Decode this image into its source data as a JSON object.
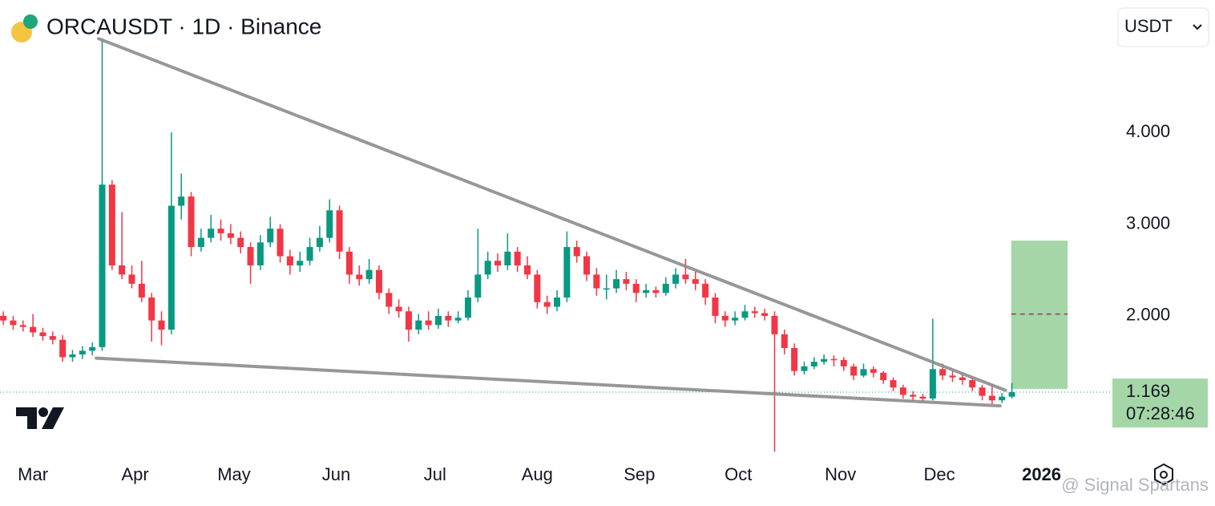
{
  "chart_data": {
    "type": "candlestick",
    "title": "ORCAUSDT · 1D · Binance",
    "currency": "USDT",
    "watermark": "@ Signal Spartans",
    "up_color": "#089981",
    "down_color": "#f23645",
    "ylim": [
      0.462,
      5.441
    ],
    "yticks": [
      {
        "value": 2,
        "label": "2.000"
      },
      {
        "value": 3,
        "label": "3.000"
      },
      {
        "value": 4,
        "label": "4.000"
      }
    ],
    "xlim": [
      0,
      337.5
    ],
    "xticks": [
      {
        "value": 10,
        "label": "Mar"
      },
      {
        "value": 41,
        "label": "Apr"
      },
      {
        "value": 71,
        "label": "May"
      },
      {
        "value": 102,
        "label": "Jun"
      },
      {
        "value": 132,
        "label": "Jul"
      },
      {
        "value": 163,
        "label": "Aug"
      },
      {
        "value": 194,
        "label": "Sep"
      },
      {
        "value": 224,
        "label": "Oct"
      },
      {
        "value": 255,
        "label": "Nov"
      },
      {
        "value": 285,
        "label": "Dec"
      },
      {
        "value": 316,
        "label": "2026"
      }
    ],
    "grid": false,
    "x": [
      1,
      4,
      7,
      10,
      13,
      16,
      19,
      22,
      25,
      28,
      31,
      34,
      37,
      40,
      43,
      46,
      49,
      52,
      55,
      58,
      61,
      64,
      67,
      70,
      73,
      76,
      79,
      82,
      85,
      88,
      91,
      94,
      97,
      100,
      103,
      106,
      109,
      112,
      115,
      118,
      121,
      124,
      127,
      130,
      133,
      136,
      139,
      142,
      145,
      148,
      151,
      154,
      157,
      160,
      163,
      166,
      169,
      172,
      175,
      178,
      181,
      184,
      187,
      190,
      193,
      196,
      199,
      202,
      205,
      208,
      211,
      214,
      217,
      220,
      223,
      226,
      229,
      232,
      235,
      238,
      241,
      244,
      247,
      250,
      253,
      256,
      259,
      262,
      265,
      268,
      271,
      274,
      277,
      280,
      283,
      286,
      289,
      292,
      295,
      298,
      301,
      304,
      307
    ],
    "candles": [
      [
        2.0,
        2.05,
        1.9,
        1.95
      ],
      [
        1.95,
        2.0,
        1.85,
        1.9
      ],
      [
        1.9,
        1.95,
        1.83,
        1.88
      ],
      [
        1.88,
        2.02,
        1.77,
        1.82
      ],
      [
        1.82,
        1.87,
        1.73,
        1.78
      ],
      [
        1.78,
        1.83,
        1.69,
        1.74
      ],
      [
        1.74,
        1.79,
        1.5,
        1.55
      ],
      [
        1.55,
        1.63,
        1.5,
        1.58
      ],
      [
        1.58,
        1.67,
        1.53,
        1.62
      ],
      [
        1.62,
        1.71,
        1.57,
        1.66
      ],
      [
        1.66,
        5.02,
        1.62,
        3.43
      ],
      [
        3.43,
        3.48,
        2.5,
        2.55
      ],
      [
        2.55,
        3.13,
        2.4,
        2.45
      ],
      [
        2.45,
        2.55,
        2.3,
        2.35
      ],
      [
        2.35,
        2.6,
        2.15,
        2.2
      ],
      [
        2.2,
        2.25,
        1.72,
        1.95
      ],
      [
        1.95,
        2.05,
        1.68,
        1.85
      ],
      [
        1.85,
        4.0,
        1.8,
        3.2
      ],
      [
        3.2,
        3.55,
        3.05,
        3.3
      ],
      [
        3.3,
        3.35,
        2.65,
        2.75
      ],
      [
        2.75,
        2.95,
        2.7,
        2.85
      ],
      [
        2.85,
        3.1,
        2.8,
        2.95
      ],
      [
        2.95,
        3.05,
        2.82,
        2.9
      ],
      [
        2.9,
        3.0,
        2.78,
        2.85
      ],
      [
        2.85,
        2.92,
        2.68,
        2.75
      ],
      [
        2.75,
        2.8,
        2.35,
        2.55
      ],
      [
        2.55,
        2.88,
        2.5,
        2.8
      ],
      [
        2.8,
        3.08,
        2.75,
        2.95
      ],
      [
        2.95,
        3.0,
        2.58,
        2.65
      ],
      [
        2.65,
        2.72,
        2.45,
        2.55
      ],
      [
        2.55,
        2.7,
        2.48,
        2.6
      ],
      [
        2.6,
        2.85,
        2.55,
        2.75
      ],
      [
        2.75,
        2.98,
        2.7,
        2.85
      ],
      [
        2.85,
        3.27,
        2.8,
        3.15
      ],
      [
        3.15,
        3.2,
        2.62,
        2.7
      ],
      [
        2.7,
        2.75,
        2.35,
        2.45
      ],
      [
        2.45,
        2.55,
        2.33,
        2.4
      ],
      [
        2.4,
        2.62,
        2.35,
        2.5
      ],
      [
        2.5,
        2.55,
        2.18,
        2.25
      ],
      [
        2.25,
        2.3,
        2.02,
        2.1
      ],
      [
        2.1,
        2.18,
        1.98,
        2.05
      ],
      [
        2.05,
        2.1,
        1.72,
        1.85
      ],
      [
        1.85,
        2.02,
        1.8,
        1.95
      ],
      [
        1.95,
        2.05,
        1.85,
        1.9
      ],
      [
        1.9,
        2.08,
        1.86,
        2.0
      ],
      [
        2.0,
        2.05,
        1.88,
        1.95
      ],
      [
        1.95,
        2.05,
        1.92,
        1.98
      ],
      [
        1.98,
        2.28,
        1.95,
        2.2
      ],
      [
        2.2,
        2.95,
        2.15,
        2.45
      ],
      [
        2.45,
        2.7,
        2.4,
        2.6
      ],
      [
        2.6,
        2.68,
        2.48,
        2.55
      ],
      [
        2.55,
        2.9,
        2.5,
        2.7
      ],
      [
        2.7,
        2.75,
        2.48,
        2.55
      ],
      [
        2.55,
        2.65,
        2.4,
        2.45
      ],
      [
        2.45,
        2.5,
        2.08,
        2.15
      ],
      [
        2.15,
        2.22,
        2.02,
        2.1
      ],
      [
        2.1,
        2.28,
        2.05,
        2.2
      ],
      [
        2.2,
        2.92,
        2.15,
        2.75
      ],
      [
        2.75,
        2.82,
        2.58,
        2.65
      ],
      [
        2.65,
        2.7,
        2.38,
        2.45
      ],
      [
        2.45,
        2.52,
        2.22,
        2.3
      ],
      [
        2.3,
        2.45,
        2.18,
        2.3
      ],
      [
        2.3,
        2.5,
        2.25,
        2.4
      ],
      [
        2.4,
        2.48,
        2.28,
        2.35
      ],
      [
        2.35,
        2.4,
        2.15,
        2.25
      ],
      [
        2.25,
        2.35,
        2.2,
        2.28
      ],
      [
        2.28,
        2.32,
        2.2,
        2.25
      ],
      [
        2.25,
        2.42,
        2.22,
        2.35
      ],
      [
        2.35,
        2.52,
        2.3,
        2.45
      ],
      [
        2.45,
        2.62,
        2.35,
        2.4
      ],
      [
        2.4,
        2.48,
        2.28,
        2.35
      ],
      [
        2.35,
        2.4,
        2.12,
        2.2
      ],
      [
        2.2,
        2.25,
        1.92,
        2.0
      ],
      [
        2.0,
        2.05,
        1.88,
        1.95
      ],
      [
        1.95,
        2.05,
        1.9,
        1.98
      ],
      [
        1.98,
        2.12,
        1.95,
        2.05
      ],
      [
        2.05,
        2.1,
        1.98,
        2.03
      ],
      [
        2.03,
        2.08,
        1.95,
        2.0
      ],
      [
        2.0,
        2.05,
        0.52,
        1.8
      ],
      [
        1.8,
        1.85,
        1.58,
        1.65
      ],
      [
        1.65,
        1.7,
        1.35,
        1.4
      ],
      [
        1.4,
        1.5,
        1.36,
        1.45
      ],
      [
        1.45,
        1.55,
        1.42,
        1.5
      ],
      [
        1.5,
        1.58,
        1.47,
        1.53
      ],
      [
        1.53,
        1.57,
        1.45,
        1.52
      ],
      [
        1.52,
        1.55,
        1.4,
        1.45
      ],
      [
        1.45,
        1.48,
        1.3,
        1.35
      ],
      [
        1.35,
        1.48,
        1.33,
        1.42
      ],
      [
        1.42,
        1.45,
        1.33,
        1.38
      ],
      [
        1.38,
        1.4,
        1.26,
        1.3
      ],
      [
        1.3,
        1.33,
        1.18,
        1.22
      ],
      [
        1.22,
        1.25,
        1.1,
        1.14
      ],
      [
        1.14,
        1.18,
        1.07,
        1.12
      ],
      [
        1.12,
        1.15,
        1.07,
        1.1
      ],
      [
        1.1,
        1.97,
        1.08,
        1.42
      ],
      [
        1.42,
        1.48,
        1.3,
        1.35
      ],
      [
        1.35,
        1.4,
        1.28,
        1.33
      ],
      [
        1.33,
        1.38,
        1.25,
        1.3
      ],
      [
        1.3,
        1.33,
        1.18,
        1.22
      ],
      [
        1.22,
        1.25,
        1.08,
        1.13
      ],
      [
        1.13,
        1.25,
        1.04,
        1.08
      ],
      [
        1.08,
        1.16,
        1.05,
        1.12
      ],
      [
        1.12,
        1.27,
        1.1,
        1.169
      ]
    ],
    "trendlines": [
      [
        [
          29.9,
          5.02
        ],
        [
          305,
          1.19
        ]
      ],
      [
        [
          29.2,
          1.54
        ],
        [
          303.4,
          1.02
        ]
      ]
    ],
    "target_box": {
      "x": [
        306.8,
        323.9
      ],
      "top": 2.82,
      "bottom": 1.205,
      "mid": 2.02
    },
    "last_price": {
      "value": 1.169,
      "label": "1.169",
      "countdown": "07:28:46"
    }
  }
}
